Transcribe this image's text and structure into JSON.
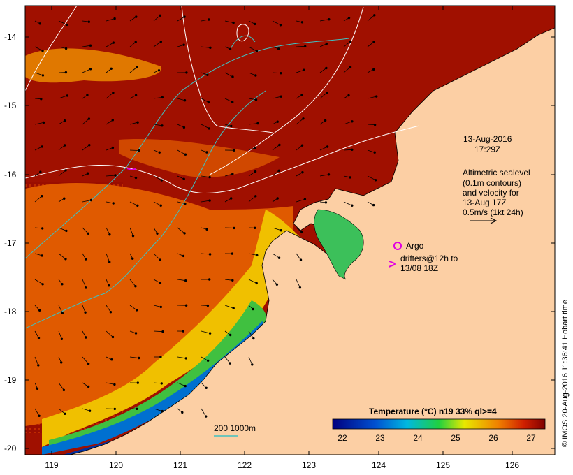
{
  "map": {
    "date": "13-Aug-2016",
    "time": "17:29Z",
    "altimetry_lines": [
      "Altimetric sealevel",
      "(0.1m contours)",
      "and velocity for",
      "13-Aug 17Z",
      "0.5m/s (1kt 24h)"
    ],
    "argo_label": "Argo",
    "drifters_line1": "drifters@12h to",
    "drifters_line2": "13/08 18Z",
    "depth_label": "200  1000m",
    "colorbar_title": "Temperature (°C) n19 33% ql>=4",
    "colorbar_ticks": [
      "22",
      "23",
      "24",
      "25",
      "26",
      "27"
    ],
    "credit": "© IMOS 20-Aug-2016 11:36:41 Hobart time",
    "lat_ticks": [
      "-14",
      "-15",
      "-16",
      "-17",
      "-18",
      "-19",
      "-20"
    ],
    "lon_ticks": [
      "119",
      "120",
      "121",
      "122",
      "123",
      "124",
      "125",
      "126"
    ],
    "colors": {
      "land": "#fccfa4",
      "sst_hot": "#b01000",
      "sst_warm": "#e66000",
      "sst_mid": "#f5b000",
      "sst_cool": "#3fbf3f",
      "sst_cold": "#0033a0",
      "contour": "#ffffff",
      "depth_contour": "#40c0c0",
      "argo": "#e000e0"
    }
  }
}
